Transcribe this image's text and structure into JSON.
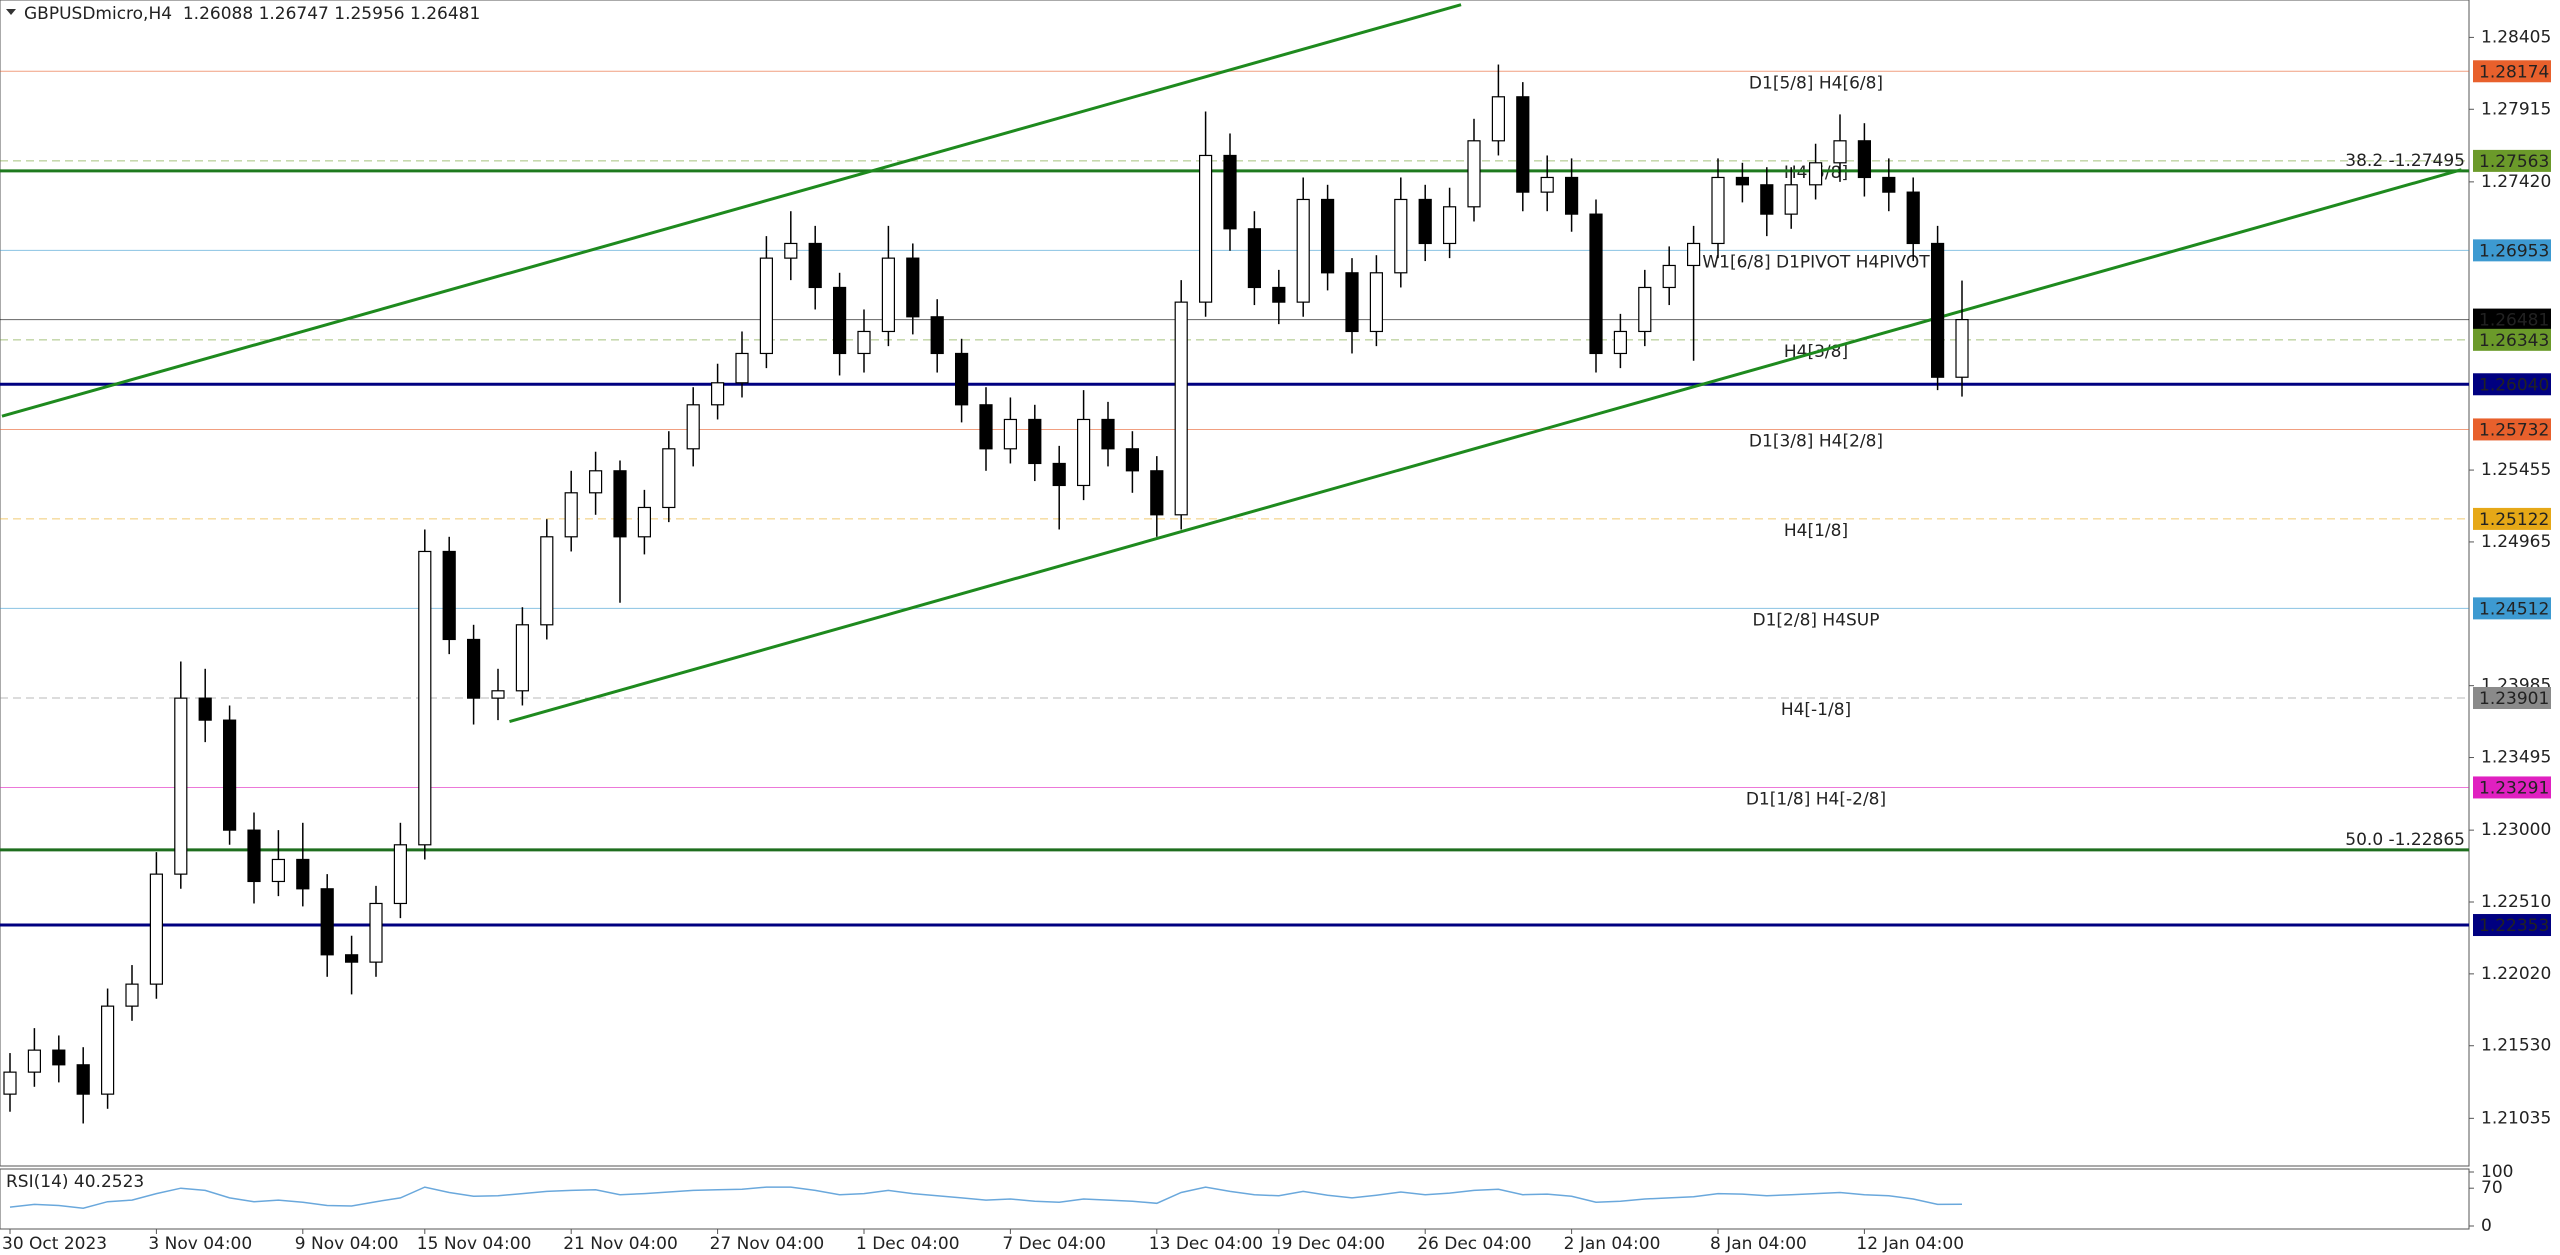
{
  "chart_data": {
    "type": "candlestick",
    "title": "GBPUSDmicro,H4  1.26088 1.26747 1.25956 1.26481",
    "categories": [
      "30 Oct 2023",
      null,
      null,
      null,
      null,
      null,
      "3 Nov 04:00",
      null,
      null,
      null,
      null,
      null,
      "9 Nov 04:00",
      null,
      null,
      null,
      null,
      "15 Nov 04:00",
      null,
      null,
      null,
      null,
      null,
      "21 Nov 04:00",
      null,
      null,
      null,
      null,
      null,
      "27 Nov 04:00",
      null,
      null,
      null,
      null,
      null,
      "1 Dec 04:00",
      null,
      null,
      null,
      null,
      null,
      "7 Dec 04:00",
      null,
      null,
      null,
      null,
      null,
      "13 Dec 04:00",
      null,
      null,
      null,
      null,
      "19 Dec 04:00",
      null,
      null,
      null,
      null,
      null,
      "26 Dec 04:00",
      null,
      null,
      null,
      null,
      null,
      "2 Jan 04:00",
      null,
      null,
      null,
      null,
      null,
      "8 Jan 04:00",
      null,
      null,
      null,
      null,
      null,
      "12 Jan 04:00",
      null,
      null,
      null,
      null
    ],
    "open": [
      1.212,
      1.2135,
      1.215,
      1.214,
      1.212,
      1.218,
      1.2195,
      1.227,
      1.239,
      1.2375,
      1.23,
      1.2265,
      1.228,
      1.226,
      1.2215,
      1.221,
      1.225,
      1.229,
      1.249,
      1.243,
      1.239,
      1.2395,
      1.244,
      1.25,
      1.253,
      1.2545,
      1.25,
      1.252,
      1.256,
      1.259,
      1.2605,
      1.2625,
      1.269,
      1.27,
      1.267,
      1.2625,
      1.264,
      1.269,
      1.265,
      1.2625,
      1.259,
      1.256,
      1.258,
      1.255,
      1.2535,
      1.258,
      1.256,
      1.2545,
      1.2515,
      1.266,
      1.276,
      1.271,
      1.267,
      1.266,
      1.273,
      1.268,
      1.264,
      1.268,
      1.273,
      1.27,
      1.2725,
      1.277,
      1.28,
      1.2735,
      1.2745,
      1.272,
      1.2625,
      1.264,
      1.267,
      1.2685,
      1.27,
      1.2745,
      1.274,
      1.272,
      1.274,
      1.2755,
      1.277,
      1.2745,
      1.2735,
      1.27,
      1.26088
    ],
    "high": [
      1.2148,
      1.2165,
      1.216,
      1.2152,
      1.2192,
      1.2208,
      1.2285,
      1.2415,
      1.241,
      1.2385,
      1.2312,
      1.23,
      1.2305,
      1.227,
      1.2228,
      1.2262,
      1.2305,
      1.2505,
      1.25,
      1.244,
      1.241,
      1.2452,
      1.2512,
      1.2545,
      1.2558,
      1.2552,
      1.2532,
      1.2572,
      1.2602,
      1.2618,
      1.264,
      1.2705,
      1.2722,
      1.2712,
      1.268,
      1.2655,
      1.2712,
      1.27,
      1.2662,
      1.2635,
      1.2602,
      1.2595,
      1.259,
      1.2562,
      1.26,
      1.2592,
      1.2572,
      1.2555,
      1.2675,
      1.279,
      1.2775,
      1.2722,
      1.2682,
      1.2745,
      1.274,
      1.269,
      1.2692,
      1.2745,
      1.274,
      1.2738,
      1.2785,
      1.2822,
      1.281,
      1.276,
      1.2758,
      1.273,
      1.2652,
      1.2682,
      1.2698,
      1.2712,
      1.2758,
      1.2755,
      1.2752,
      1.2752,
      1.2768,
      1.2788,
      1.2782,
      1.2758,
      1.2745,
      1.2712,
      1.26747
    ],
    "low": [
      1.2108,
      1.2125,
      1.2128,
      1.21,
      1.211,
      1.217,
      1.2185,
      1.226,
      1.236,
      1.229,
      1.225,
      1.2255,
      1.2248,
      1.22,
      1.2188,
      1.22,
      1.224,
      1.228,
      1.242,
      1.2372,
      1.2375,
      1.2385,
      1.243,
      1.249,
      1.2515,
      1.2455,
      1.2488,
      1.251,
      1.2548,
      1.258,
      1.2595,
      1.2615,
      1.2675,
      1.2655,
      1.261,
      1.2612,
      1.263,
      1.2638,
      1.2612,
      1.2578,
      1.2545,
      1.255,
      1.2538,
      1.2505,
      1.2525,
      1.2548,
      1.253,
      1.25,
      1.2505,
      1.265,
      1.2695,
      1.2658,
      1.2645,
      1.265,
      1.2668,
      1.2625,
      1.263,
      1.267,
      1.2688,
      1.269,
      1.2715,
      1.276,
      1.2722,
      1.2722,
      1.2708,
      1.2612,
      1.2615,
      1.263,
      1.2658,
      1.262,
      1.269,
      1.2728,
      1.2705,
      1.271,
      1.273,
      1.2742,
      1.2732,
      1.2722,
      1.2688,
      1.26,
      1.25956
    ],
    "close": [
      1.2135,
      1.215,
      1.214,
      1.212,
      1.218,
      1.2195,
      1.227,
      1.239,
      1.2375,
      1.23,
      1.2265,
      1.228,
      1.226,
      1.2215,
      1.221,
      1.225,
      1.229,
      1.249,
      1.243,
      1.239,
      1.2395,
      1.244,
      1.25,
      1.253,
      1.2545,
      1.25,
      1.252,
      1.256,
      1.259,
      1.2605,
      1.2625,
      1.269,
      1.27,
      1.267,
      1.2625,
      1.264,
      1.269,
      1.265,
      1.2625,
      1.259,
      1.256,
      1.258,
      1.255,
      1.2535,
      1.258,
      1.256,
      1.2545,
      1.2515,
      1.266,
      1.276,
      1.271,
      1.267,
      1.266,
      1.273,
      1.268,
      1.264,
      1.268,
      1.273,
      1.27,
      1.2725,
      1.277,
      1.28,
      1.2735,
      1.2745,
      1.272,
      1.2625,
      1.264,
      1.267,
      1.2685,
      1.27,
      1.2745,
      1.274,
      1.272,
      1.274,
      1.2755,
      1.277,
      1.2745,
      1.2735,
      1.27,
      1.26088,
      1.26481
    ],
    "ylim": [
      1.2071,
      1.2866
    ],
    "yticks": [
      1.28405,
      1.27915,
      {
        "value": 1.2742,
        "label": "1.27420"
      },
      1.25455,
      1.24965,
      1.23985,
      1.23495,
      {
        "value": 1.23,
        "label": "1.23000"
      },
      {
        "value": 1.2251,
        "label": "1.22510"
      },
      {
        "value": 1.2202,
        "label": "1.22020"
      },
      {
        "value": 1.2153,
        "label": "1.21530"
      },
      1.21035
    ],
    "levels": [
      {
        "price": 1.28174,
        "color": "#e8602c",
        "text": "D1[5/8] H4[6/8]",
        "dash": false,
        "width": 1,
        "box": true
      },
      {
        "price": 1.27563,
        "color": "#6b9a2a",
        "text": "H4[5/8]",
        "dash": true,
        "width": 1,
        "box": true
      },
      {
        "price": 1.27495,
        "color": "#1e7a1e",
        "text": "38.2 -1.27495",
        "dash": false,
        "width": 3,
        "box": false
      },
      {
        "price": 1.26953,
        "color": "#3d9ad1",
        "text": "W1[6/8] D1PIVOT H4PIVOT",
        "dash": false,
        "width": 1,
        "box": true
      },
      {
        "price": 1.26481,
        "color": "#000000",
        "dash": false,
        "width": 1,
        "box": true
      },
      {
        "price": 1.26343,
        "color": "#6b9a2a",
        "text": "H4[3/8]",
        "dash": true,
        "width": 1,
        "box": true
      },
      {
        "price": 1.2604,
        "price_label": "1.26040",
        "color": "#000080",
        "dash": false,
        "width": 3,
        "box": true
      },
      {
        "price": 1.25732,
        "color": "#e8602c",
        "text": "D1[3/8] H4[2/8]",
        "dash": false,
        "width": 1,
        "box": true
      },
      {
        "price": 1.25122,
        "color": "#e6a817",
        "text": "H4[1/8]",
        "dash": true,
        "width": 1,
        "box": true
      },
      {
        "price": 1.24512,
        "color": "#3d9ad1",
        "text": "D1[2/8] H4SUP",
        "dash": false,
        "width": 1,
        "box": true
      },
      {
        "price": 1.23901,
        "color": "#8a8a8a",
        "text": "H4[-1/8]",
        "dash": true,
        "width": 1,
        "box": true
      },
      {
        "price": 1.23291,
        "color": "#e020c0",
        "text": "D1[1/8] H4[-2/8]",
        "dash": false,
        "width": 1,
        "box": true
      },
      {
        "price": 1.22865,
        "color": "#1e6e1e",
        "text": "50.0 -1.22865",
        "dash": false,
        "width": 3,
        "box": false
      },
      {
        "price": 1.22353,
        "color": "#000080",
        "dash": false,
        "width": 3,
        "box": true
      }
    ],
    "trendlines": [
      {
        "x": [
          -0.33,
          59.47
        ],
        "y": [
          1.25822,
          1.28628
        ],
        "color": "#1e8a1e"
      },
      {
        "x": [
          20.47,
          100.47
        ],
        "y": [
          1.2374,
          1.27503
        ],
        "color": "#1e8a1e"
      }
    ],
    "rsi": {
      "title": "RSI(14) 40.2523",
      "color": "#6aa8dc",
      "ylim": [
        0,
        100
      ],
      "yticks": [
        100,
        70,
        0
      ],
      "values": [
        35,
        40,
        38,
        33,
        45,
        48,
        60,
        70,
        66,
        52,
        45,
        48,
        44,
        38,
        37,
        45,
        52,
        72,
        62,
        55,
        56,
        60,
        64,
        66,
        67,
        58,
        60,
        63,
        66,
        67,
        68,
        72,
        72,
        66,
        58,
        60,
        66,
        60,
        56,
        52,
        48,
        50,
        46,
        44,
        50,
        48,
        46,
        42,
        62,
        72,
        64,
        58,
        56,
        64,
        57,
        52,
        57,
        63,
        58,
        61,
        66,
        68,
        58,
        59,
        55,
        44,
        46,
        50,
        52,
        54,
        60,
        59,
        56,
        58,
        60,
        62,
        58,
        56,
        50,
        40,
        40.2523
      ]
    }
  }
}
